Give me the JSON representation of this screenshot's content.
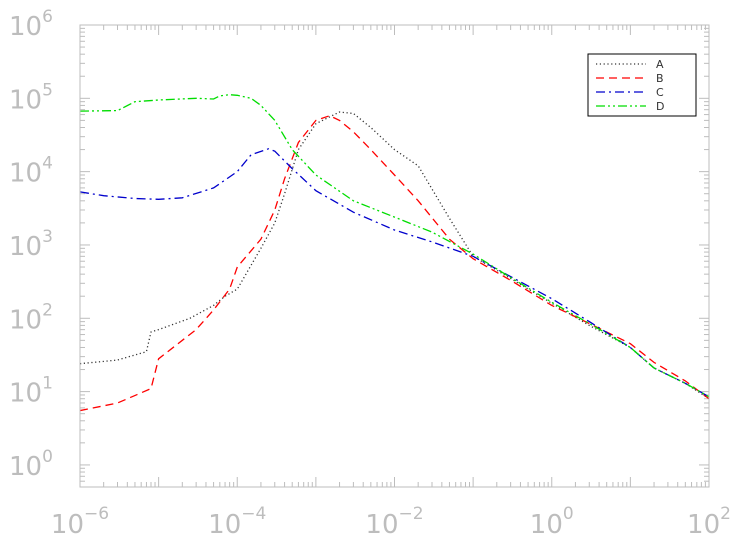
{
  "chart_data": {
    "type": "line",
    "title": "",
    "xlabel": "",
    "ylabel": "",
    "x_scale": "log",
    "y_scale": "log",
    "xlim": [
      1e-06,
      100
    ],
    "ylim": [
      0.5,
      1000000
    ],
    "x_ticks": [
      {
        "value": 1e-06,
        "base": "10",
        "exp": "−6"
      },
      {
        "value": 0.0001,
        "base": "10",
        "exp": "−4"
      },
      {
        "value": 0.01,
        "base": "10",
        "exp": "−2"
      },
      {
        "value": 1,
        "base": "10",
        "exp": "0"
      },
      {
        "value": 100,
        "base": "10",
        "exp": "2"
      }
    ],
    "y_ticks": [
      {
        "value": 1,
        "base": "10",
        "exp": "0"
      },
      {
        "value": 10,
        "base": "10",
        "exp": "1"
      },
      {
        "value": 100,
        "base": "10",
        "exp": "2"
      },
      {
        "value": 1000,
        "base": "10",
        "exp": "3"
      },
      {
        "value": 10000,
        "base": "10",
        "exp": "4"
      },
      {
        "value": 100000,
        "base": "10",
        "exp": "5"
      },
      {
        "value": 1000000,
        "base": "10",
        "exp": "6"
      }
    ],
    "grid": false,
    "legend": {
      "position": "top-right"
    },
    "colors": {
      "A": "#333333",
      "B": "#ff0000",
      "C": "#0000cc",
      "D": "#00dd00",
      "axis": "#bdbdbd"
    },
    "series": [
      {
        "name": "A",
        "style": "dotted",
        "x": [
          1e-06,
          3e-06,
          7e-06,
          8e-06,
          1e-05,
          2.5e-05,
          5e-05,
          7e-05,
          0.0001,
          0.0002,
          0.0003,
          0.0004,
          0.0006,
          0.001,
          0.002,
          0.003,
          0.005,
          0.01,
          0.02,
          0.05,
          0.1,
          0.3,
          1,
          3,
          10,
          20,
          50,
          100
        ],
        "y": [
          24,
          27,
          35,
          65,
          70,
          100,
          150,
          200,
          250,
          900,
          2000,
          5000,
          20000,
          45000,
          65000,
          62000,
          40000,
          20000,
          12000,
          2300,
          700,
          350,
          160,
          80,
          40,
          21,
          13,
          8
        ]
      },
      {
        "name": "B",
        "style": "dashed",
        "x": [
          1e-06,
          3e-06,
          8e-06,
          1e-05,
          3e-05,
          5e-05,
          8e-05,
          0.0001,
          0.0002,
          0.0003,
          0.0004,
          0.0006,
          0.001,
          0.0015,
          0.002,
          0.003,
          0.005,
          0.01,
          0.02,
          0.05,
          0.1,
          0.3,
          1,
          3,
          10,
          20,
          50,
          100
        ],
        "y": [
          5.5,
          7,
          11,
          28,
          70,
          130,
          250,
          500,
          1200,
          3000,
          8000,
          25000,
          50000,
          58000,
          50000,
          35000,
          20000,
          9000,
          4000,
          1200,
          650,
          330,
          150,
          85,
          45,
          25,
          14,
          8
        ]
      },
      {
        "name": "C",
        "style": "dashdot",
        "x": [
          1e-06,
          2e-06,
          5e-06,
          1e-05,
          2e-05,
          5e-05,
          0.0001,
          0.00015,
          0.00025,
          0.0003,
          0.0005,
          0.001,
          0.003,
          0.01,
          0.03,
          0.1,
          0.3,
          1,
          3,
          10,
          20,
          50,
          100
        ],
        "y": [
          5300,
          4700,
          4300,
          4200,
          4400,
          6000,
          10000,
          17000,
          20500,
          19000,
          11000,
          5500,
          2800,
          1600,
          1100,
          700,
          370,
          185,
          90,
          40,
          21,
          13,
          8.5
        ]
      },
      {
        "name": "D",
        "style": "dashdotdot",
        "x": [
          1e-06,
          3e-06,
          5e-06,
          1e-05,
          3e-05,
          5e-05,
          6e-05,
          8e-05,
          0.0001,
          0.00015,
          0.0002,
          0.0003,
          0.0005,
          0.001,
          0.003,
          0.01,
          0.03,
          0.1,
          0.3,
          1,
          3,
          10,
          20,
          50,
          100
        ],
        "y": [
          67000,
          68000,
          90000,
          95000,
          100000,
          98000,
          108000,
          112000,
          110000,
          100000,
          80000,
          50000,
          20000,
          9000,
          4000,
          2400,
          1500,
          750,
          360,
          165,
          85,
          40,
          21,
          13,
          8.5
        ]
      }
    ]
  }
}
